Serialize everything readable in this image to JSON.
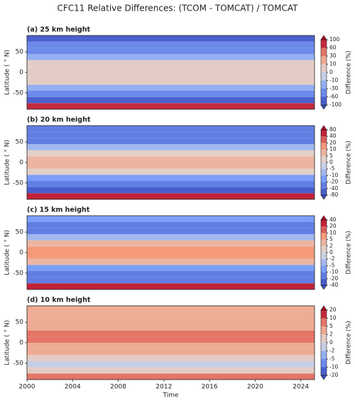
{
  "suptitle": "CFC11 Relative Differences: (TCOM - TOMCAT) / TOMCAT",
  "chart_data": [
    {
      "type": "heatmap",
      "title": "(a) 25 km height",
      "y_label": "Latitude ( ° N)",
      "colorbar_label": "Difference (%)",
      "xlim": [
        2000,
        2025.2
      ],
      "ylim": [
        -90,
        90
      ],
      "yticks": [
        -50,
        0,
        50
      ],
      "y_edges": [
        -90,
        -75,
        -60,
        -45,
        -30,
        -15,
        0,
        15,
        30,
        45,
        60,
        75,
        90
      ],
      "values": [
        80,
        -60,
        -40,
        -10,
        10,
        10,
        10,
        5,
        -10,
        -30,
        -50,
        -60
      ],
      "cbar_ticks": [
        -100,
        -60,
        -30,
        -10,
        0,
        10,
        30,
        60,
        100
      ]
    },
    {
      "type": "heatmap",
      "title": "(b) 20 km height",
      "y_label": "Latitude ( ° N)",
      "colorbar_label": "Difference (%)",
      "xlim": [
        2000,
        2025.2
      ],
      "ylim": [
        -90,
        90
      ],
      "yticks": [
        -50,
        0,
        50
      ],
      "y_edges": [
        -90,
        -75,
        -60,
        -45,
        -30,
        -15,
        0,
        15,
        30,
        45,
        60,
        75,
        90
      ],
      "values": [
        60,
        -40,
        -30,
        -10,
        5,
        10,
        10,
        5,
        -5,
        -20,
        -30,
        -30
      ],
      "cbar_ticks": [
        -80,
        -40,
        -20,
        -10,
        -5,
        0,
        5,
        10,
        20,
        40,
        80
      ]
    },
    {
      "type": "heatmap",
      "title": "(c) 15 km height",
      "y_label": "Latitude ( ° N)",
      "colorbar_label": "Difference (%)",
      "xlim": [
        2000,
        2025.2
      ],
      "ylim": [
        -90,
        90
      ],
      "yticks": [
        -50,
        0,
        50
      ],
      "y_edges": [
        -90,
        -75,
        -60,
        -45,
        -30,
        -15,
        0,
        15,
        30,
        45,
        60,
        75,
        90
      ],
      "values": [
        30,
        -10,
        -15,
        -5,
        5,
        8,
        8,
        5,
        -2,
        -10,
        -10,
        -8
      ],
      "cbar_ticks": [
        -40,
        -20,
        -10,
        -5,
        -2,
        0,
        2,
        5,
        10,
        20,
        40
      ]
    },
    {
      "type": "heatmap",
      "title": "(d) 10 km height",
      "y_label": "Latitude ( ° N)",
      "colorbar_label": "Difference (%)",
      "x_label": "Time",
      "xlim": [
        2000,
        2025.2
      ],
      "xticks": [
        2000,
        2004,
        2008,
        2012,
        2016,
        2020,
        2024
      ],
      "ylim": [
        -90,
        90
      ],
      "yticks": [
        -50,
        0,
        50
      ],
      "y_edges": [
        -90,
        -75,
        -60,
        -45,
        -30,
        -15,
        0,
        15,
        30,
        45,
        60,
        75,
        90
      ],
      "values": [
        8,
        2,
        0,
        2,
        4,
        5,
        6,
        6,
        5,
        4,
        5,
        3
      ],
      "cbar_ticks": [
        -20,
        -10,
        -5,
        -2,
        0,
        2,
        5,
        10,
        20
      ]
    }
  ]
}
